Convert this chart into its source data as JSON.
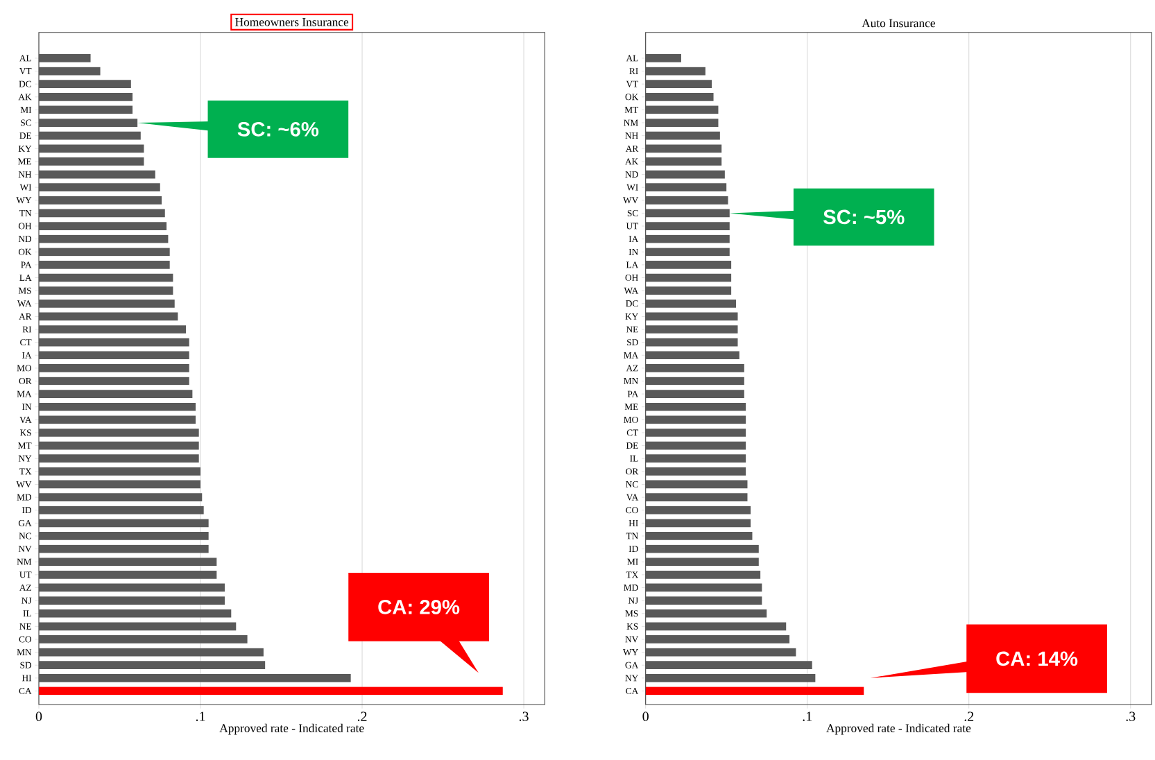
{
  "chart_data": [
    {
      "type": "bar",
      "orientation": "horizontal",
      "title": "Homeowners Insurance",
      "xlabel": "Approved rate - Indicated rate",
      "categories": [
        "AL",
        "VT",
        "DC",
        "AK",
        "MI",
        "SC",
        "DE",
        "KY",
        "ME",
        "NH",
        "WI",
        "WY",
        "TN",
        "OH",
        "ND",
        "OK",
        "PA",
        "LA",
        "MS",
        "WA",
        "AR",
        "RI",
        "CT",
        "IA",
        "MO",
        "OR",
        "MA",
        "IN",
        "VA",
        "KS",
        "MT",
        "NY",
        "TX",
        "WV",
        "MD",
        "ID",
        "GA",
        "NC",
        "NV",
        "NM",
        "UT",
        "AZ",
        "NJ",
        "IL",
        "NE",
        "CO",
        "MN",
        "SD",
        "HI",
        "CA"
      ],
      "values": [
        0.032,
        0.038,
        0.057,
        0.058,
        0.058,
        0.061,
        0.063,
        0.065,
        0.065,
        0.072,
        0.075,
        0.076,
        0.078,
        0.079,
        0.08,
        0.081,
        0.081,
        0.083,
        0.083,
        0.084,
        0.086,
        0.091,
        0.093,
        0.093,
        0.093,
        0.093,
        0.095,
        0.097,
        0.097,
        0.099,
        0.099,
        0.099,
        0.1,
        0.1,
        0.101,
        0.102,
        0.105,
        0.105,
        0.105,
        0.11,
        0.11,
        0.115,
        0.115,
        0.119,
        0.122,
        0.129,
        0.139,
        0.14,
        0.193,
        0.287
      ],
      "colors": [
        "#595959",
        "#595959",
        "#595959",
        "#595959",
        "#595959",
        "#595959",
        "#595959",
        "#595959",
        "#595959",
        "#595959",
        "#595959",
        "#595959",
        "#595959",
        "#595959",
        "#595959",
        "#595959",
        "#595959",
        "#595959",
        "#595959",
        "#595959",
        "#595959",
        "#595959",
        "#595959",
        "#595959",
        "#595959",
        "#595959",
        "#595959",
        "#595959",
        "#595959",
        "#595959",
        "#595959",
        "#595959",
        "#595959",
        "#595959",
        "#595959",
        "#595959",
        "#595959",
        "#595959",
        "#595959",
        "#595959",
        "#595959",
        "#595959",
        "#595959",
        "#595959",
        "#595959",
        "#595959",
        "#595959",
        "#595959",
        "#595959",
        "#ff0000"
      ],
      "xlim": [
        0,
        0.313
      ],
      "xticks": [
        0,
        {
          "value": 0.1,
          "label": ".1"
        },
        {
          "value": 0.2,
          "label": ".2"
        },
        {
          "value": 0.3,
          "label": ".3"
        }
      ],
      "grid": "x",
      "annotations": [
        {
          "text": "SC: ~6%",
          "x": 0.061,
          "y": "SC"
        },
        "CA: 29%"
      ]
    },
    {
      "type": "bar",
      "orientation": "horizontal",
      "title": "Auto Insurance",
      "xlabel": "Approved rate - Indicated rate",
      "categories": [
        "AL",
        "RI",
        "VT",
        "OK",
        "MT",
        "NM",
        "NH",
        "AR",
        "AK",
        "ND",
        "WI",
        "WV",
        "SC",
        "UT",
        "IA",
        "IN",
        "LA",
        "OH",
        "WA",
        "DC",
        "KY",
        "NE",
        "SD",
        "MA",
        "AZ",
        "MN",
        "PA",
        "ME",
        "MO",
        "CT",
        "DE",
        "IL",
        "OR",
        "NC",
        "VA",
        "CO",
        "HI",
        "TN",
        "ID",
        "MI",
        "TX",
        "MD",
        "NJ",
        "MS",
        "KS",
        "NV",
        "WY",
        "GA",
        "NY",
        "CA"
      ],
      "values": [
        0.022,
        0.037,
        0.041,
        0.042,
        0.045,
        0.045,
        0.046,
        0.047,
        0.047,
        0.049,
        0.05,
        0.051,
        0.052,
        0.052,
        0.052,
        0.052,
        0.053,
        0.053,
        0.053,
        0.056,
        0.057,
        0.057,
        0.057,
        0.058,
        0.061,
        0.061,
        0.061,
        0.062,
        0.062,
        0.062,
        0.062,
        0.062,
        0.062,
        0.063,
        0.063,
        0.065,
        0.065,
        0.066,
        0.07,
        0.07,
        0.071,
        0.072,
        0.072,
        0.075,
        0.087,
        0.089,
        0.093,
        0.103,
        0.105,
        0.135
      ],
      "colors": [
        "#595959",
        "#595959",
        "#595959",
        "#595959",
        "#595959",
        "#595959",
        "#595959",
        "#595959",
        "#595959",
        "#595959",
        "#595959",
        "#595959",
        "#595959",
        "#595959",
        "#595959",
        "#595959",
        "#595959",
        "#595959",
        "#595959",
        "#595959",
        "#595959",
        "#595959",
        "#595959",
        "#595959",
        "#595959",
        "#595959",
        "#595959",
        "#595959",
        "#595959",
        "#595959",
        "#595959",
        "#595959",
        "#595959",
        "#595959",
        "#595959",
        "#595959",
        "#595959",
        "#595959",
        "#595959",
        "#595959",
        "#595959",
        "#595959",
        "#595959",
        "#595959",
        "#595959",
        "#595959",
        "#595959",
        "#595959",
        "#595959",
        "#ff0000"
      ],
      "xlim": [
        0,
        0.313
      ],
      "xticks": [
        0,
        {
          "value": 0.1,
          "label": ".1"
        },
        {
          "value": 0.2,
          "label": ".2"
        },
        {
          "value": 0.3,
          "label": ".3"
        }
      ],
      "grid": "x",
      "annotations": [
        {
          "text": "SC: ~5%",
          "x": 0.052,
          "y": "SC"
        },
        "CA: 14%"
      ]
    }
  ]
}
